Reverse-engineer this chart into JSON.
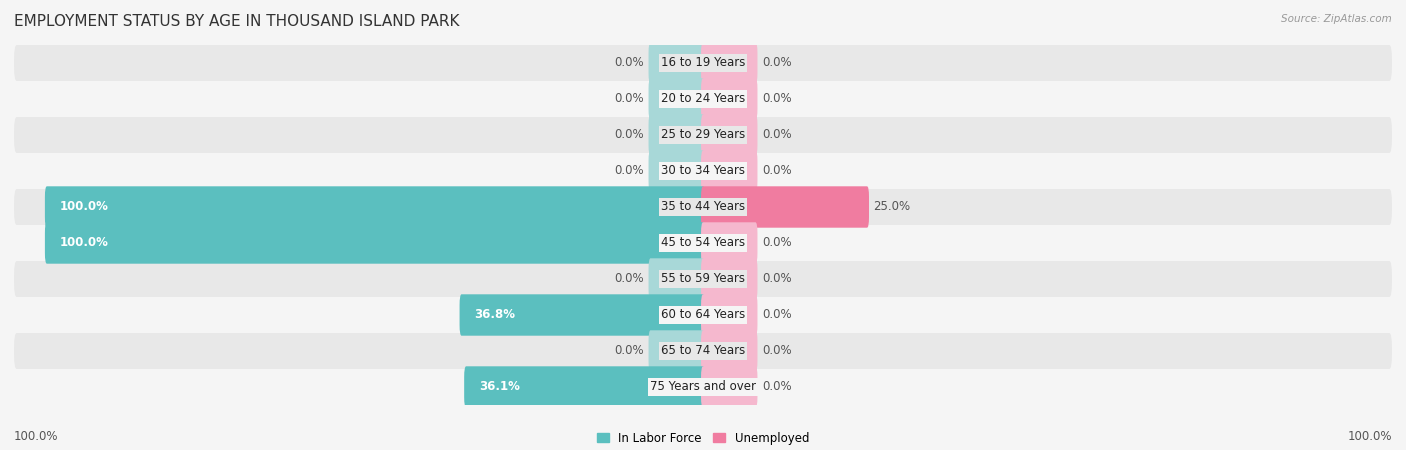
{
  "title": "EMPLOYMENT STATUS BY AGE IN THOUSAND ISLAND PARK",
  "source": "Source: ZipAtlas.com",
  "categories": [
    "16 to 19 Years",
    "20 to 24 Years",
    "25 to 29 Years",
    "30 to 34 Years",
    "35 to 44 Years",
    "45 to 54 Years",
    "55 to 59 Years",
    "60 to 64 Years",
    "65 to 74 Years",
    "75 Years and over"
  ],
  "in_labor_force": [
    0.0,
    0.0,
    0.0,
    0.0,
    100.0,
    100.0,
    0.0,
    36.8,
    0.0,
    36.1
  ],
  "unemployed": [
    0.0,
    0.0,
    0.0,
    0.0,
    25.0,
    0.0,
    0.0,
    0.0,
    0.0,
    0.0
  ],
  "color_labor": "#5bbfbf",
  "color_labor_light": "#a8d8d8",
  "color_unemployed": "#f07ca0",
  "color_unemployed_light": "#f5b8ce",
  "color_bg_dark": "#e8e8e8",
  "color_bg_light": "#f5f5f5",
  "axis_label_left": "100.0%",
  "axis_label_right": "100.0%",
  "legend_labor": "In Labor Force",
  "legend_unemployed": "Unemployed",
  "x_max": 100.0,
  "stub_size": 8.0,
  "bar_height": 0.55,
  "title_fontsize": 11,
  "label_fontsize": 8.5,
  "category_fontsize": 8.5,
  "axis_fontsize": 8.5
}
